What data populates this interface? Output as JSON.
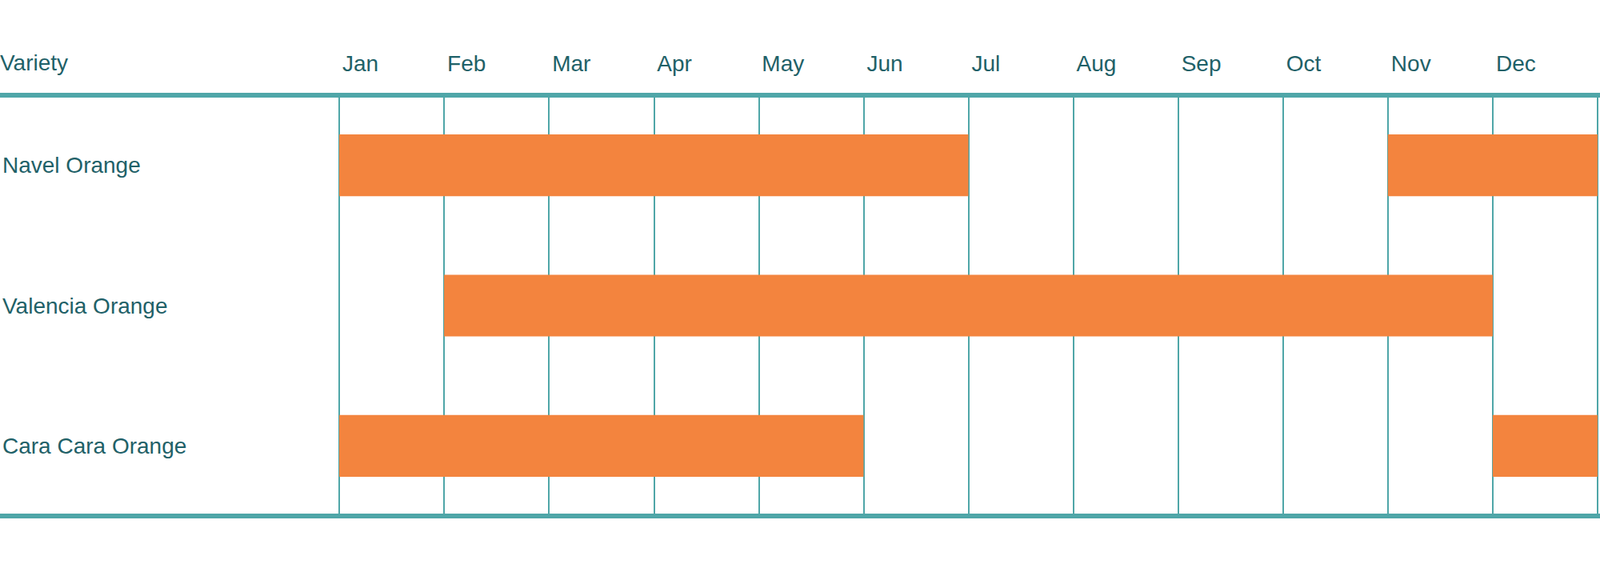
{
  "chart_data": {
    "type": "gantt",
    "header": "Variety",
    "categories": [
      "Jan",
      "Feb",
      "Mar",
      "Apr",
      "May",
      "Jun",
      "Jul",
      "Aug",
      "Sep",
      "Oct",
      "Nov",
      "Dec"
    ],
    "color": "#f3843e",
    "grid": true,
    "series": [
      {
        "name": "Navel Orange",
        "spans": [
          [
            "Jan",
            "Jun"
          ],
          [
            "Nov",
            "Dec"
          ]
        ]
      },
      {
        "name": "Valencia Orange",
        "spans": [
          [
            "Feb",
            "Nov"
          ]
        ]
      },
      {
        "name": "Cara Cara Orange",
        "spans": [
          [
            "Jan",
            "May"
          ],
          [
            "Dec",
            "Dec"
          ]
        ]
      }
    ]
  }
}
